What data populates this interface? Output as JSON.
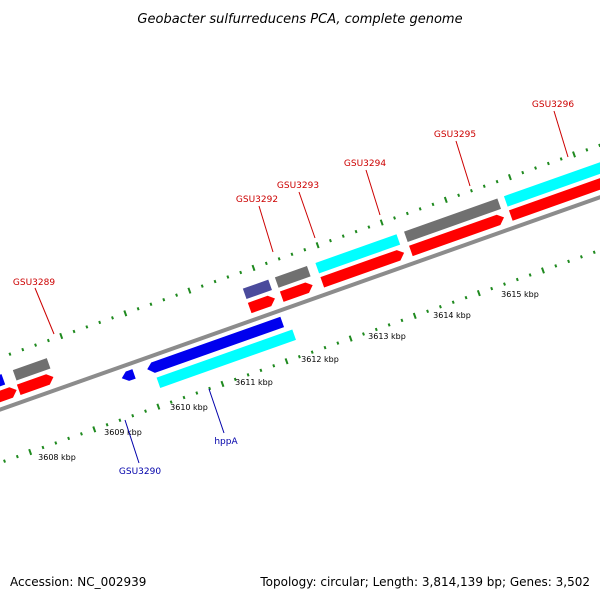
{
  "title": "Geobacter sulfurreducens PCA, complete genome",
  "footer": {
    "accession": "Accession: NC_002939",
    "summary": "Topology: circular; Length: 3,814,139 bp; Genes: 3,502"
  },
  "colors": {
    "backbone": "#8c8c8c",
    "tick": "#1f8a1f",
    "forward_label": "#cc0000",
    "reverse_label": "#0000aa",
    "cds": "#ff0000",
    "gene_blue": "#0000ee",
    "gene_cyan": "#00ffff",
    "gene_gray": "#707070",
    "gene_slate": "#4b4b9c"
  },
  "scale_labels": [
    "3608 kbp",
    "3609 kbp",
    "3610 kbp",
    "3611 kbp",
    "3612 kbp",
    "3613 kbp",
    "3614 kbp",
    "3615 kbp"
  ],
  "labels": {
    "forward": [
      "GSU3289",
      "GSU3292",
      "GSU3293",
      "GSU3294",
      "GSU3295",
      "GSU3296"
    ],
    "reverse": [
      "GSU3290",
      "hppA"
    ]
  }
}
